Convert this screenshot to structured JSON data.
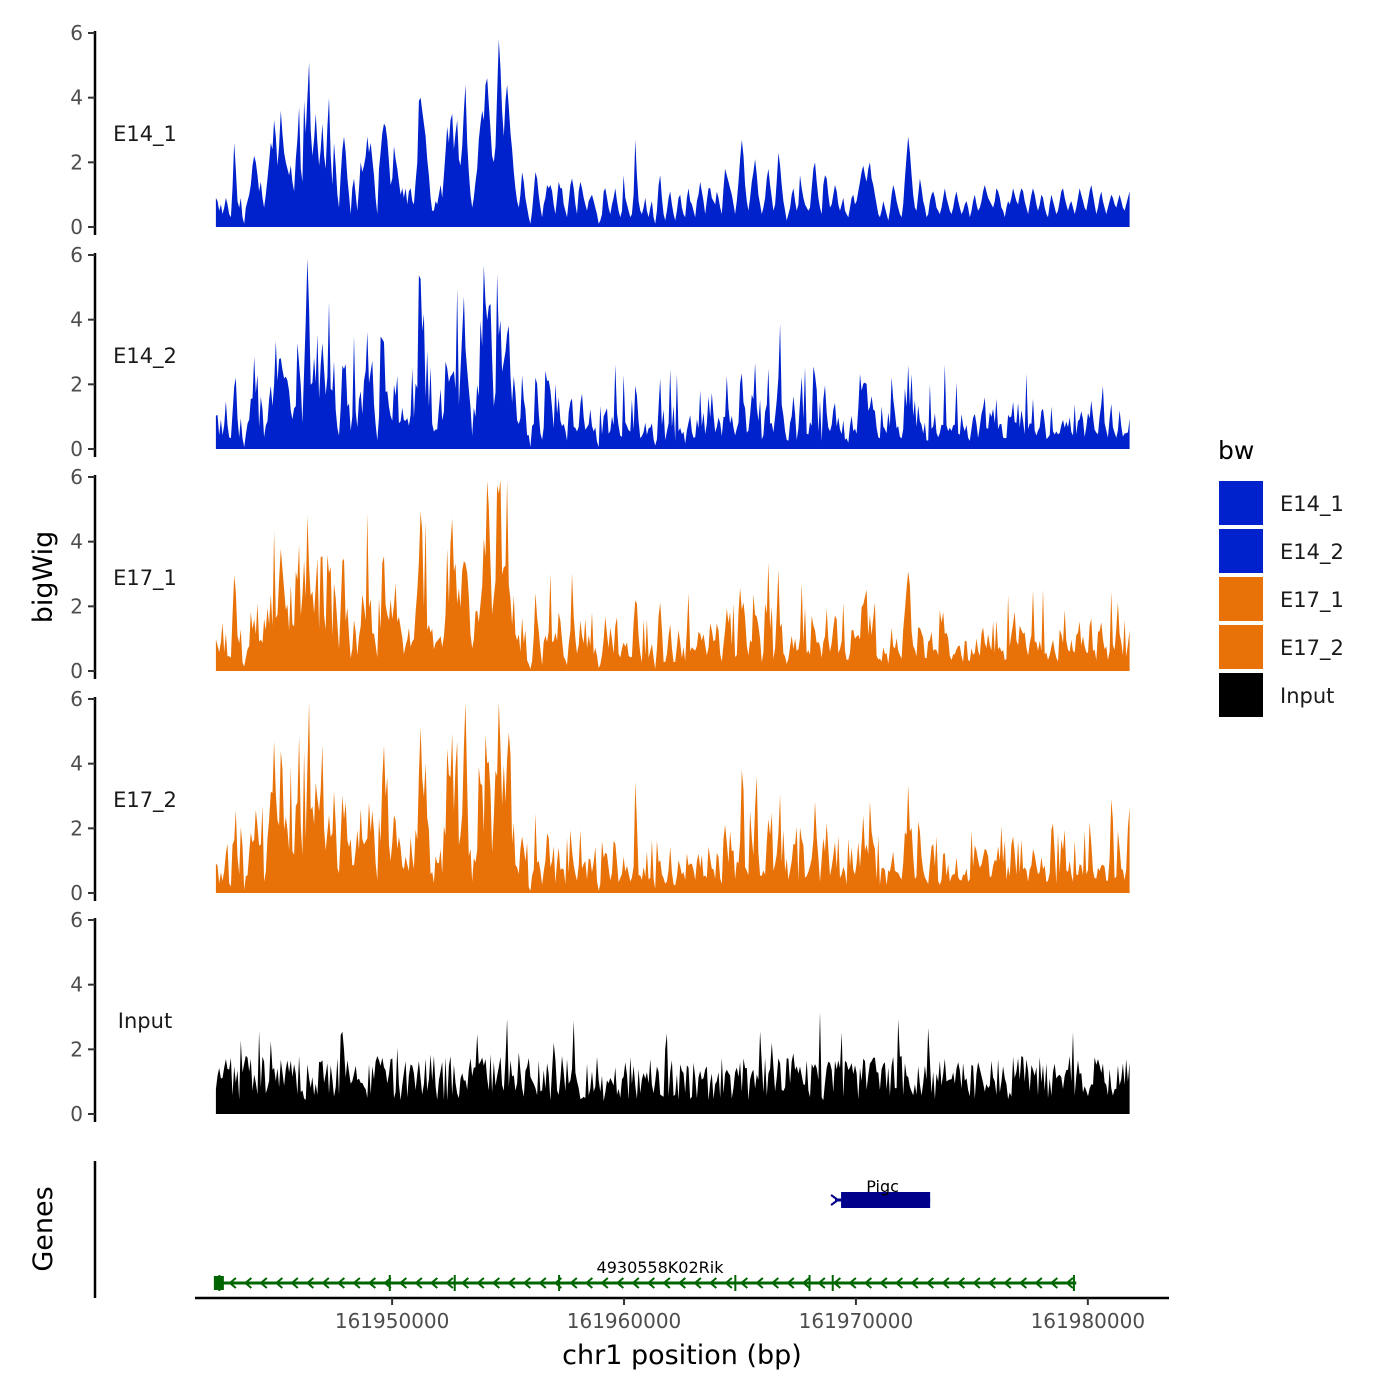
{
  "chart_data": {
    "type": "area",
    "chromosome": "chr1",
    "xlabel": "chr1 position (bp)",
    "ylabel": "bigWig",
    "genes_label": "Genes",
    "xlim": [
      161941500,
      161983500
    ],
    "x_ticks": [
      161950000,
      161960000,
      161970000,
      161980000
    ],
    "x_tick_labels": [
      "161950000",
      "161960000",
      "161970000",
      "161980000"
    ],
    "ylim": [
      0,
      6
    ],
    "y_ticks": [
      0,
      2,
      4,
      6
    ],
    "y_tick_labels": [
      "0",
      "2",
      "4",
      "6"
    ],
    "signal_x_range": [
      161942400,
      161981800
    ],
    "legend": {
      "title": "bw",
      "entries": [
        {
          "name": "E14_1",
          "color": "#0022cc"
        },
        {
          "name": "E14_2",
          "color": "#0022cc"
        },
        {
          "name": "E17_1",
          "color": "#e87208"
        },
        {
          "name": "E17_2",
          "color": "#e87208"
        },
        {
          "name": "Input",
          "color": "#000000"
        }
      ]
    },
    "series": [
      {
        "name": "E14_1",
        "color": "#0022cc",
        "values": [
          0.9,
          0.8,
          0.5,
          0.7,
          0.4,
          0.6,
          0.9,
          0.7,
          0.4,
          0.3,
          1.2,
          2.6,
          1.8,
          0.8,
          0.6,
          0.9,
          0.3,
          0.1,
          0.6,
          0.8,
          1.0,
          1.3,
          1.9,
          2.2,
          2.0,
          1.6,
          1.1,
          1.4,
          0.9,
          0.6,
          1.0,
          1.5,
          2.0,
          2.6,
          2.4,
          3.3,
          2.8,
          1.9,
          2.5,
          3.6,
          2.9,
          2.3,
          2.0,
          1.8,
          1.6,
          1.9,
          1.4,
          1.1,
          2.1,
          2.7,
          3.7,
          1.8,
          1.4,
          3.9,
          2.9,
          4.0,
          5.1,
          3.0,
          2.2,
          2.7,
          3.5,
          2.6,
          1.9,
          2.4,
          3.2,
          2.2,
          1.8,
          3.1,
          4.0,
          2.2,
          1.3,
          2.6,
          1.9,
          1.0,
          0.6,
          1.6,
          2.4,
          2.8,
          2.3,
          1.5,
          1.0,
          0.4,
          1.2,
          1.5,
          1.0,
          0.5,
          1.2,
          2.0,
          1.7,
          1.9,
          2.2,
          2.8,
          2.3,
          2.6,
          2.1,
          1.6,
          0.9,
          0.4,
          1.8,
          2.3,
          2.9,
          3.2,
          3.1,
          2.7,
          2.0,
          1.3,
          1.5,
          2.5,
          2.1,
          1.8,
          1.4,
          1.0,
          1.2,
          0.9,
          1.2,
          0.7,
          1.1,
          1.2,
          0.8,
          0.7,
          1.4,
          2.0,
          3.9,
          4.0,
          3.6,
          3.2,
          2.8,
          2.1,
          1.6,
          0.9,
          0.5,
          0.5,
          0.8,
          0.7,
          1.0,
          1.3,
          0.9,
          1.6,
          2.3,
          3.1,
          2.6,
          3.3,
          3.5,
          2.4,
          2.9,
          3.3,
          2.1,
          1.9,
          2.5,
          3.6,
          4.4,
          2.6,
          1.7,
          1.0,
          0.6,
          0.9,
          1.4,
          1.8,
          2.7,
          3.2,
          3.6,
          3.3,
          4.4,
          4.6,
          3.8,
          3.0,
          2.2,
          2.0,
          2.5,
          4.1,
          5.8,
          4.9,
          3.6,
          2.8,
          3.9,
          4.4,
          3.7,
          2.9,
          2.4,
          1.7,
          1.2,
          0.8,
          0.6,
          1.0,
          1.7,
          1.4,
          0.9,
          0.6,
          0.3,
          0.1,
          0.5,
          1.1,
          1.7,
          1.5,
          1.0,
          0.6,
          0.3,
          0.7,
          0.9,
          1.3,
          1.2,
          1.3,
          1.1,
          0.7,
          0.4,
          0.9,
          1.4,
          1.2,
          1.2,
          0.7,
          0.5,
          0.3,
          0.8,
          1.3,
          1.5,
          1.2,
          0.7,
          0.4,
          1.1,
          1.4,
          1.2,
          0.9,
          0.7,
          0.5,
          0.8,
          0.9,
          1.0,
          0.8,
          0.6,
          0.4,
          0.1,
          0.2,
          0.4,
          1.1,
          1.2,
          0.9,
          0.6,
          0.4,
          0.7,
          0.9,
          1.2,
          0.8,
          0.5,
          0.3,
          0.5,
          1.6,
          0.9,
          0.7,
          0.5,
          0.3,
          0.4,
          1.0,
          2.7,
          1.6,
          0.8,
          0.5,
          0.4,
          0.6,
          0.9,
          0.5,
          0.3,
          0.6,
          0.8,
          0.3,
          0.1,
          0.5,
          1.3,
          1.6,
          0.9,
          0.4,
          0.2,
          0.5,
          0.9,
          1.1,
          0.7,
          0.4,
          0.2,
          0.5,
          0.9,
          1.0,
          0.6,
          0.4,
          0.3,
          0.9,
          1.2,
          0.8,
          0.7,
          0.5,
          0.3,
          0.8,
          1.0,
          1.4,
          1.1,
          0.8,
          0.4,
          0.8,
          1.2,
          1.2,
          0.9,
          0.8,
          0.7,
          1.1,
          0.9,
          0.6,
          0.4,
          1.2,
          1.8,
          1.6,
          1.4,
          1.2,
          1.0,
          0.7,
          0.4,
          0.8,
          1.4,
          2.1,
          2.7,
          2.2,
          1.3,
          0.8,
          0.5,
          0.9,
          1.4,
          1.7,
          2.1,
          1.6,
          1.0,
          0.7,
          0.4,
          0.6,
          0.9,
          1.5,
          1.8,
          1.3,
          0.9,
          0.5,
          0.7,
          1.4,
          2.3,
          1.9,
          1.3,
          0.8,
          0.5,
          0.2,
          0.4,
          0.6,
          1.0,
          1.2,
          0.8,
          0.5,
          0.7,
          1.6,
          1.2,
          0.9,
          0.7,
          0.6,
          0.5,
          0.6,
          1.2,
          1.8,
          2.0,
          1.4,
          0.9,
          0.6,
          0.4,
          1.3,
          1.6,
          1.5,
          1.0,
          0.6,
          0.7,
          1.0,
          1.3,
          1.1,
          0.7,
          0.5,
          0.7,
          0.9,
          0.5,
          0.4,
          0.3,
          0.6,
          0.9,
          1.0,
          0.7,
          0.8,
          1.1,
          1.4,
          1.7,
          1.9,
          1.6,
          1.4,
          1.8,
          2.0,
          1.5,
          1.3,
          1.0,
          0.7,
          0.4,
          0.3,
          0.5,
          0.8,
          0.6,
          0.4,
          0.2,
          0.5,
          1.0,
          1.3,
          1.1,
          0.8,
          0.6,
          0.4,
          0.3,
          0.7,
          1.5,
          2.2,
          2.8,
          2.3,
          1.6,
          1.0,
          0.6,
          0.5,
          1.0,
          1.5,
          1.2,
          0.8,
          0.6,
          0.3,
          0.4,
          0.8,
          1.0,
          1.1,
          0.9,
          0.6,
          0.5,
          0.4,
          0.6,
          0.9,
          1.2,
          0.9,
          0.7,
          0.5,
          0.4,
          0.6,
          0.9,
          1.1,
          0.8,
          0.6,
          0.4,
          0.5,
          0.7,
          0.8,
          0.6,
          0.3,
          0.5,
          0.8,
          1.0,
          0.7,
          0.5,
          0.6,
          0.8,
          1.1,
          1.3,
          1.1,
          0.9,
          0.8,
          0.7,
          0.6,
          0.8,
          1.2,
          1.1,
          0.9,
          0.6,
          0.5,
          0.3,
          0.6,
          0.8,
          0.7,
          0.9,
          1.2,
          1.0,
          0.8,
          0.7,
          1.0,
          1.2,
          1.1,
          0.8,
          0.6,
          0.4,
          0.7,
          1.0,
          1.2,
          1.0,
          0.7,
          0.5,
          0.7,
          1.0,
          0.9,
          0.6,
          0.4,
          0.3,
          0.7,
          1.0,
          0.8,
          0.6,
          0.4,
          0.5,
          0.8,
          1.1,
          1.2,
          0.9,
          0.7,
          0.5,
          0.7,
          0.8,
          0.6,
          0.4,
          0.6,
          0.9,
          1.2,
          1.0,
          0.8,
          0.6,
          0.5,
          0.8,
          1.1,
          1.3,
          1.0,
          0.7,
          0.4,
          0.6,
          0.9,
          1.1,
          0.8,
          0.6,
          0.4,
          0.6,
          0.8,
          1.0,
          0.9,
          0.7,
          0.6,
          0.8,
          1.0,
          0.8,
          0.6,
          0.5,
          0.7,
          0.9,
          1.1
        ]
      }
    ],
    "gene_track": {
      "genes": [
        {
          "name": "Pigc",
          "start": 161969100,
          "end": 161973200,
          "strand": "+",
          "color": "#00008b",
          "row": 1
        },
        {
          "name": "4930558K02Rik",
          "start": 161942400,
          "end": 161979500,
          "strand": "-",
          "color": "#006400",
          "row": 2,
          "exon_positions": [
            161942550,
            161949900,
            161952700,
            161957200,
            161964800,
            161968000,
            161969000,
            161979400
          ]
        }
      ]
    }
  }
}
